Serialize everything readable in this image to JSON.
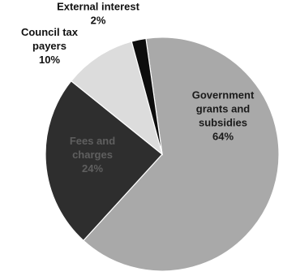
{
  "chart_data": {
    "type": "pie",
    "slices": [
      {
        "label_lines": [
          "Government",
          "grants and",
          "subsidies"
        ],
        "value_label": "64%",
        "value": 64,
        "color": "#a9a9a9",
        "text_color": "#1a1a1a"
      },
      {
        "label_lines": [
          "Fees and",
          "charges"
        ],
        "value_label": "24%",
        "value": 24,
        "color": "#2e2e2e",
        "text_color": "#5f5f5f"
      },
      {
        "label_lines": [
          "Council tax",
          "payers"
        ],
        "value_label": "10%",
        "value": 10,
        "color": "#dcdcdc",
        "text_color": "#111111"
      },
      {
        "label_lines": [
          "External interest"
        ],
        "value_label": "2%",
        "value": 2,
        "color": "#0d0d0d",
        "text_color": "#111111"
      }
    ]
  }
}
